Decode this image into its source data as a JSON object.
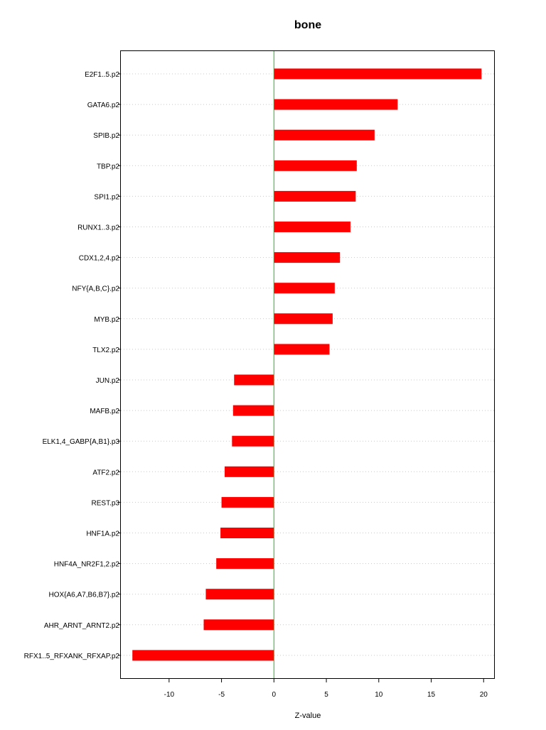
{
  "chart_data": {
    "type": "bar",
    "orientation": "horizontal",
    "title": "bone",
    "xlabel": "Z-value",
    "ylabel": "",
    "xlim": [
      -14.6,
      21.0
    ],
    "xticks": [
      -10,
      -5,
      0,
      5,
      10,
      15,
      20
    ],
    "xtick_labels": [
      "-10",
      "-5",
      "0",
      "5",
      "10",
      "15",
      "20"
    ],
    "grid": "horizontal dotted",
    "reference_line": 0,
    "categories": [
      "E2F1..5.p2",
      "GATA6.p2",
      "SPIB.p2",
      "TBP.p2",
      "SPI1.p2",
      "RUNX1..3.p2",
      "CDX1,2,4.p2",
      "NFY{A,B,C}.p2",
      "MYB.p2",
      "TLX2.p2",
      "JUN.p2",
      "MAFB.p2",
      "ELK1,4_GABP{A,B1}.p3",
      "ATF2.p2",
      "REST.p3",
      "HNF1A.p2",
      "HNF4A_NR2F1,2.p2",
      "HOX{A6,A7,B6,B7}.p2",
      "AHR_ARNT_ARNT2.p2",
      "RFX1..5_RFXANK_RFXAP.p2"
    ],
    "values": [
      19.8,
      11.8,
      9.6,
      7.9,
      7.8,
      7.3,
      6.3,
      5.8,
      5.6,
      5.3,
      -3.8,
      -3.9,
      -4.0,
      -4.7,
      -5.0,
      -5.1,
      -5.5,
      -6.5,
      -6.7,
      -13.5
    ],
    "bar_color": "#ff0000",
    "reference_line_color": "#00cc00"
  }
}
